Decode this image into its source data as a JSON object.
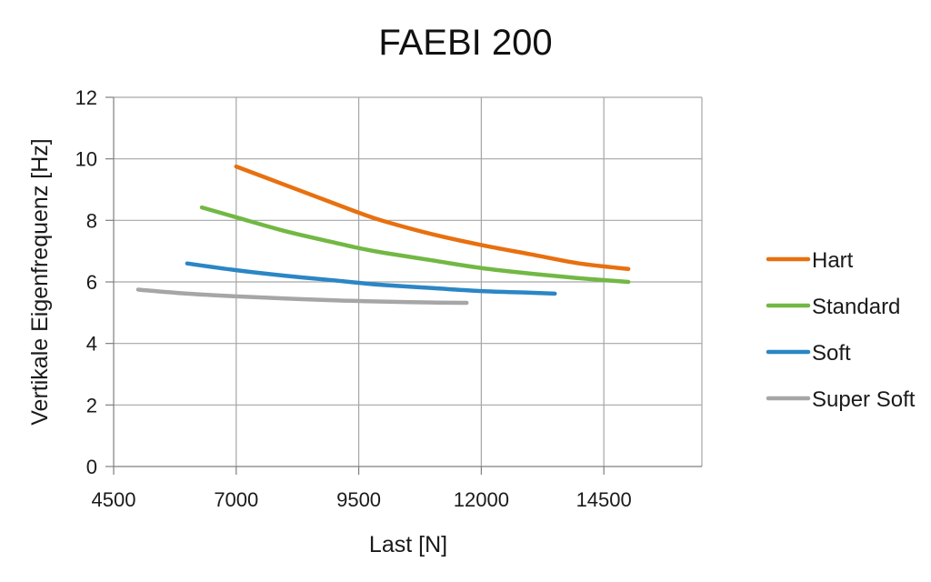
{
  "chart_data": {
    "type": "line",
    "title": "FAEBI 200",
    "xlabel": "Last [N]",
    "ylabel": "Vertikale Eigenfrequenz [Hz]",
    "xlim": [
      4500,
      16500
    ],
    "ylim": [
      0,
      12
    ],
    "xticks": [
      4500,
      7000,
      9500,
      12000,
      14500
    ],
    "yticks": [
      0,
      2,
      4,
      6,
      8,
      10,
      12
    ],
    "grid": true,
    "legend_position": "right",
    "series": [
      {
        "name": "Hart",
        "color": "#e8700f",
        "x": [
          7000,
          8000,
          9000,
          9500,
          10000,
          11000,
          12000,
          13000,
          14000,
          15000
        ],
        "y": [
          9.75,
          9.15,
          8.55,
          8.25,
          7.98,
          7.55,
          7.2,
          6.9,
          6.6,
          6.42
        ]
      },
      {
        "name": "Standard",
        "color": "#72b844",
        "x": [
          6300,
          7000,
          8000,
          9000,
          9500,
          10000,
          11000,
          12000,
          13000,
          14000,
          15000
        ],
        "y": [
          8.42,
          8.1,
          7.65,
          7.28,
          7.1,
          6.95,
          6.7,
          6.45,
          6.27,
          6.12,
          6.0
        ]
      },
      {
        "name": "Soft",
        "color": "#2b86c5",
        "x": [
          6000,
          7000,
          8000,
          9000,
          9500,
          10000,
          11000,
          12000,
          13000,
          13500
        ],
        "y": [
          6.6,
          6.38,
          6.2,
          6.05,
          5.97,
          5.9,
          5.8,
          5.7,
          5.65,
          5.62
        ]
      },
      {
        "name": "Super Soft",
        "color": "#a6a6a6",
        "x": [
          5000,
          6000,
          7000,
          8000,
          9000,
          9500,
          10000,
          11000,
          11700
        ],
        "y": [
          5.75,
          5.62,
          5.53,
          5.46,
          5.4,
          5.38,
          5.36,
          5.33,
          5.32
        ]
      }
    ]
  }
}
